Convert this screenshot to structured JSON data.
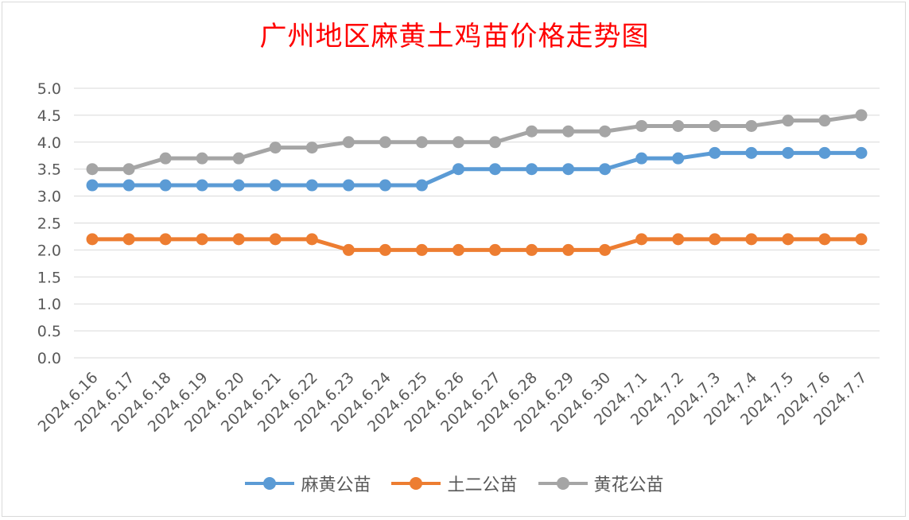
{
  "chart_data": {
    "type": "line",
    "title": "广州地区麻黄土鸡苗价格走势图",
    "xlabel": "",
    "ylabel": "",
    "ylim": [
      0,
      5
    ],
    "yticks": [
      "0.0",
      "0.5",
      "1.0",
      "1.5",
      "2.0",
      "2.5",
      "3.0",
      "3.5",
      "4.0",
      "4.5",
      "5.0"
    ],
    "grid": true,
    "legend_position": "bottom",
    "categories": [
      "2024.6.16",
      "2024.6.17",
      "2024.6.18",
      "2024.6.19",
      "2024.6.20",
      "2024.6.21",
      "2024.6.22",
      "2024.6.23",
      "2024.6.24",
      "2024.6.25",
      "2024.6.26",
      "2024.6.27",
      "2024.6.28",
      "2024.6.29",
      "2024.6.30",
      "2024.7.1",
      "2024.7.2",
      "2024.7.3",
      "2024.7.4",
      "2024.7.5",
      "2024.7.6",
      "2024.7.7"
    ],
    "series": [
      {
        "name": "麻黄公苗",
        "color": "#5b9bd5",
        "values": [
          3.2,
          3.2,
          3.2,
          3.2,
          3.2,
          3.2,
          3.2,
          3.2,
          3.2,
          3.2,
          3.5,
          3.5,
          3.5,
          3.5,
          3.5,
          3.7,
          3.7,
          3.8,
          3.8,
          3.8,
          3.8,
          3.8
        ]
      },
      {
        "name": "土二公苗",
        "color": "#ed7d31",
        "values": [
          2.2,
          2.2,
          2.2,
          2.2,
          2.2,
          2.2,
          2.2,
          2.0,
          2.0,
          2.0,
          2.0,
          2.0,
          2.0,
          2.0,
          2.0,
          2.2,
          2.2,
          2.2,
          2.2,
          2.2,
          2.2,
          2.2
        ]
      },
      {
        "name": "黄花公苗",
        "color": "#a5a5a5",
        "values": [
          3.5,
          3.5,
          3.7,
          3.7,
          3.7,
          3.9,
          3.9,
          4.0,
          4.0,
          4.0,
          4.0,
          4.0,
          4.2,
          4.2,
          4.2,
          4.3,
          4.3,
          4.3,
          4.3,
          4.4,
          4.4,
          4.5
        ]
      }
    ]
  }
}
